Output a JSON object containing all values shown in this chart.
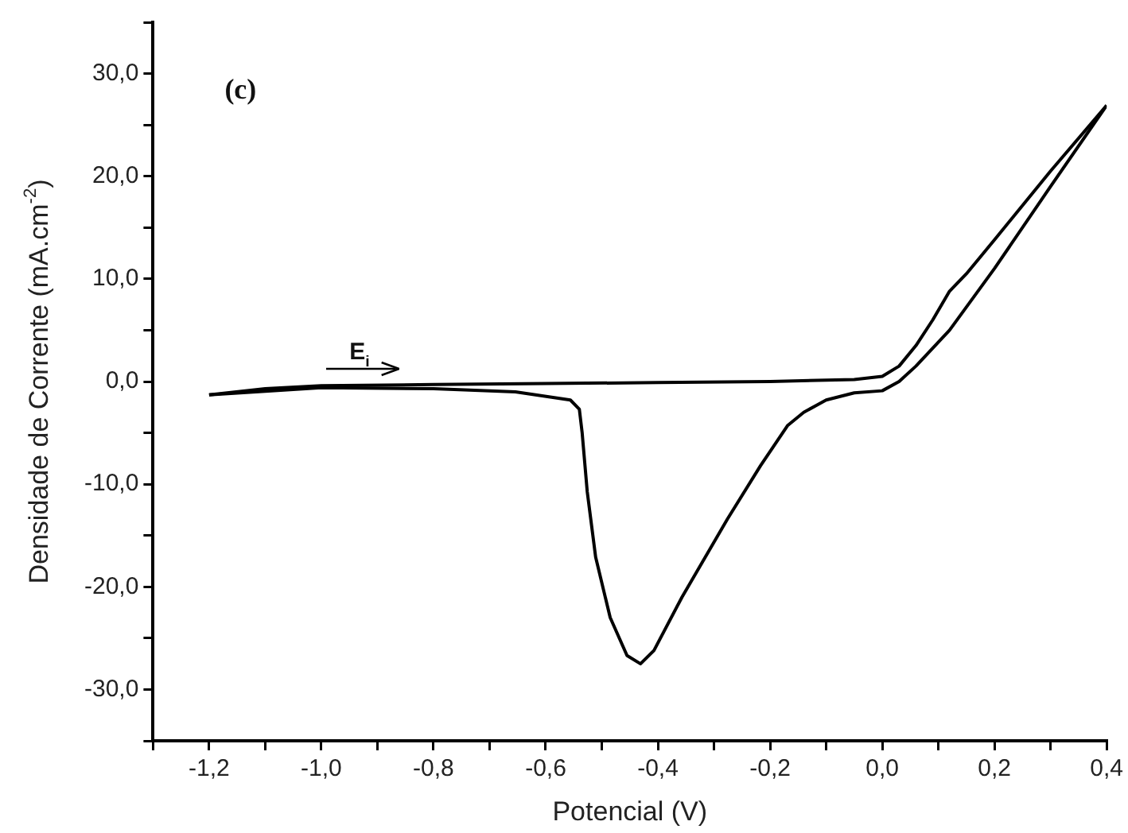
{
  "chart_data": {
    "type": "line",
    "xlabel": "Potencial (V)",
    "ylabel": "Densidade de Corrente (mA.cm$^{-2}$)",
    "annotations": [
      "(c)",
      "E$_{i}$"
    ],
    "xlim": [
      -1.3,
      0.4
    ],
    "ylim": [
      -35,
      35
    ],
    "xticks": [
      {
        "value": -1.3,
        "label": null
      },
      {
        "value": -1.2,
        "label": "-1,2"
      },
      {
        "value": -1.1,
        "label": null
      },
      {
        "value": -1.0,
        "label": "-1,0"
      },
      {
        "value": -0.9,
        "label": null
      },
      {
        "value": -0.8,
        "label": "-0,8"
      },
      {
        "value": -0.7,
        "label": null
      },
      {
        "value": -0.6,
        "label": "-0,6"
      },
      {
        "value": -0.5,
        "label": null
      },
      {
        "value": -0.4,
        "label": "-0,4"
      },
      {
        "value": -0.3,
        "label": null
      },
      {
        "value": -0.2,
        "label": "-0,2"
      },
      {
        "value": -0.1,
        "label": null
      },
      {
        "value": 0,
        "label": "0,0"
      },
      {
        "value": 0.1,
        "label": null
      },
      {
        "value": 0.2,
        "label": "0,2"
      },
      {
        "value": 0.3,
        "label": null
      },
      {
        "value": 0.4,
        "label": "0,4"
      }
    ],
    "yticks": [
      {
        "value": -35,
        "label": null
      },
      {
        "value": -30,
        "label": "-30,0"
      },
      {
        "value": -25,
        "label": null
      },
      {
        "value": -20,
        "label": "-20,0"
      },
      {
        "value": -15,
        "label": null
      },
      {
        "value": -10,
        "label": "-10,0"
      },
      {
        "value": -5,
        "label": null
      },
      {
        "value": 0,
        "label": "0,0"
      },
      {
        "value": 5,
        "label": null
      },
      {
        "value": 10,
        "label": "10,0"
      },
      {
        "value": 15,
        "label": null
      },
      {
        "value": 20,
        "label": "20,0"
      },
      {
        "value": 25,
        "label": null
      },
      {
        "value": 30,
        "label": "30,0"
      },
      {
        "value": 35,
        "label": null
      }
    ],
    "grid": false,
    "legend": false,
    "marker": "none",
    "line_style": "solid",
    "series": [
      {
        "color": "#000000",
        "x": [
          -1.2,
          -1.1,
          -1.0,
          -0.8,
          -0.6,
          -0.4,
          -0.2,
          -0.05,
          0,
          0.03,
          0.06,
          0.09,
          0.12,
          0.15,
          0.2,
          0.3,
          0.4
        ],
        "values": [
          -1.3,
          -0.7,
          -0.4,
          -0.3,
          -0.2,
          -0.1,
          0,
          0.2,
          0.5,
          1.5,
          3.5,
          6,
          8.8,
          10.5,
          13.8,
          20.5,
          26.9
        ]
      },
      {
        "color": "#000000",
        "x": [
          -1.2,
          -1.0,
          -0.8,
          -0.654,
          -0.556,
          -0.54,
          -0.535,
          -0.526,
          -0.511,
          -0.485,
          -0.455,
          -0.431,
          -0.407,
          -0.357,
          -0.276,
          -0.217,
          -0.169,
          -0.14,
          -0.1,
          -0.05,
          0,
          0.03,
          0.06,
          0.12,
          0.2,
          0.3,
          0.4
        ],
        "values": [
          -1.3,
          -0.6,
          -0.7,
          -1.0,
          -1.8,
          -2.7,
          -5,
          -10.7,
          -17.1,
          -23,
          -26.7,
          -27.5,
          -26.2,
          -21,
          -13.4,
          -8.2,
          -4.3,
          -3,
          -1.8,
          -1.1,
          -0.9,
          0,
          1.5,
          5,
          11,
          19,
          26.9
        ]
      }
    ]
  }
}
